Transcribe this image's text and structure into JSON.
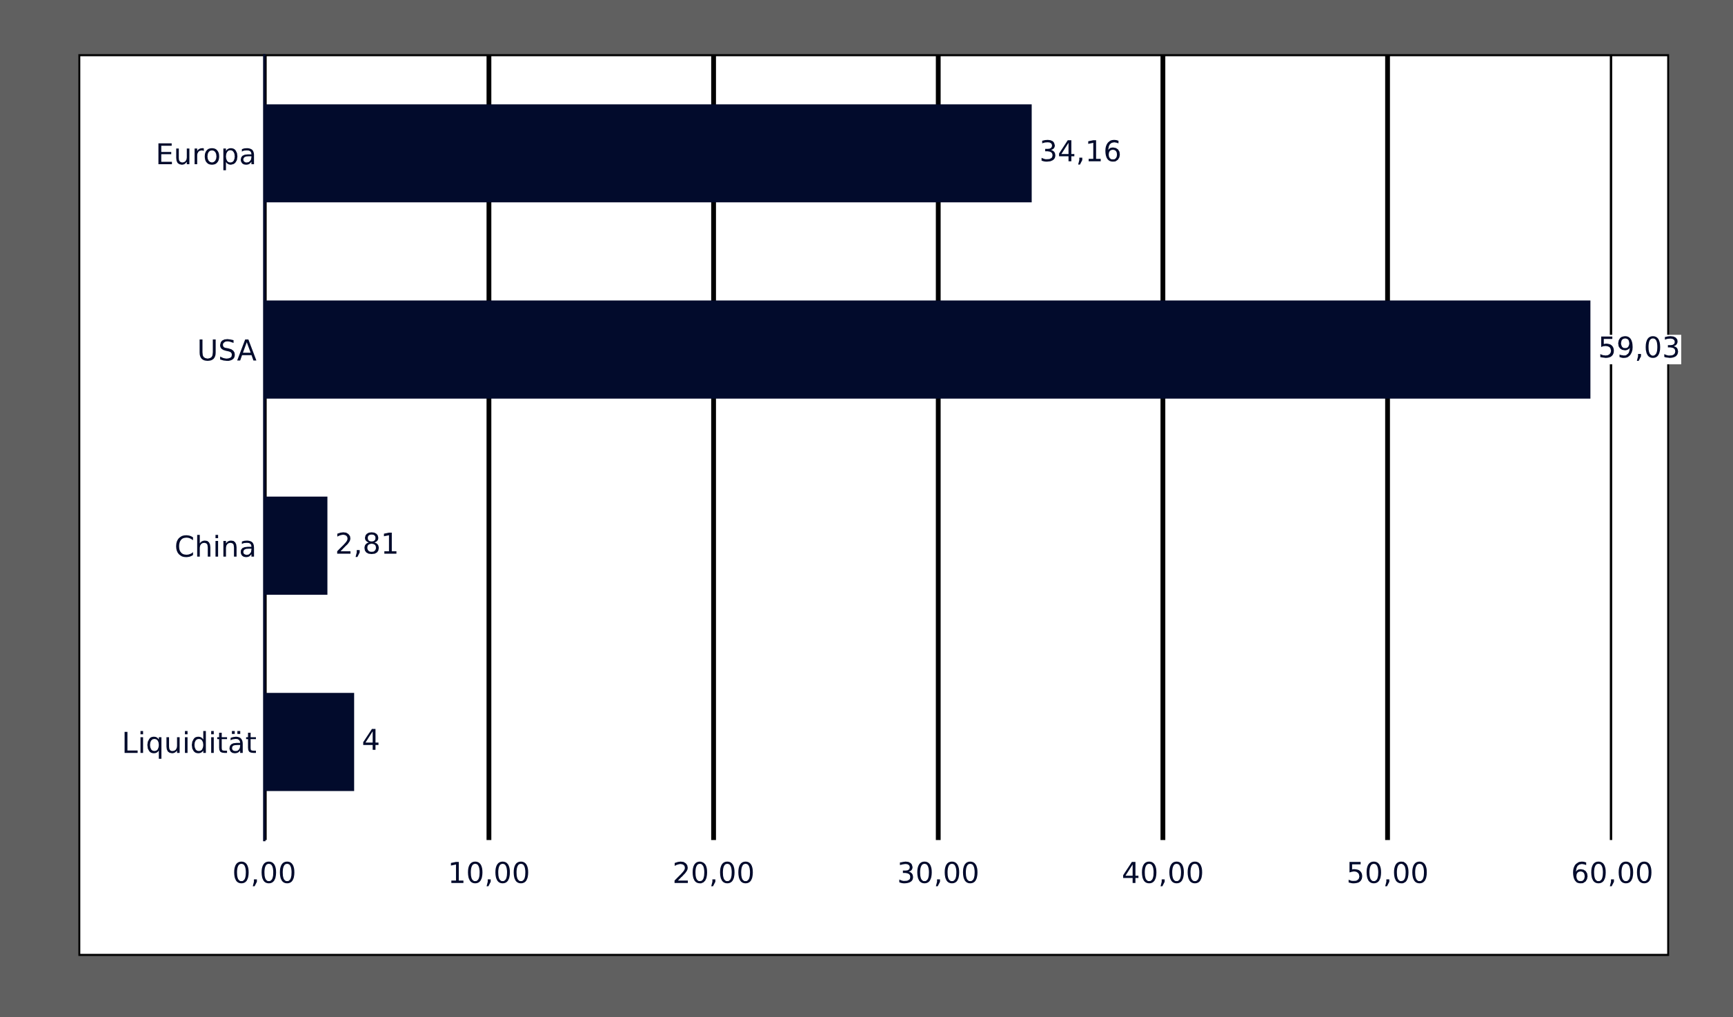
{
  "chart_data": {
    "type": "bar",
    "orientation": "horizontal",
    "categories": [
      "Europa",
      "USA",
      "China",
      "Liquidität"
    ],
    "values": [
      34.16,
      59.03,
      2.81,
      4
    ],
    "value_labels": [
      "34,16",
      "59,03",
      "2,81",
      "4"
    ],
    "color": "#020b2c",
    "xlim": [
      0,
      60
    ],
    "xticks": [
      {
        "value": 0,
        "label": "0,00"
      },
      {
        "value": 10,
        "label": "10,00"
      },
      {
        "value": 20,
        "label": "20,00"
      },
      {
        "value": 30,
        "label": "30,00"
      },
      {
        "value": 40,
        "label": "40,00"
      },
      {
        "value": 50,
        "label": "50,00"
      },
      {
        "value": 60,
        "label": "60,00"
      }
    ],
    "grid": "x",
    "legend": false
  }
}
